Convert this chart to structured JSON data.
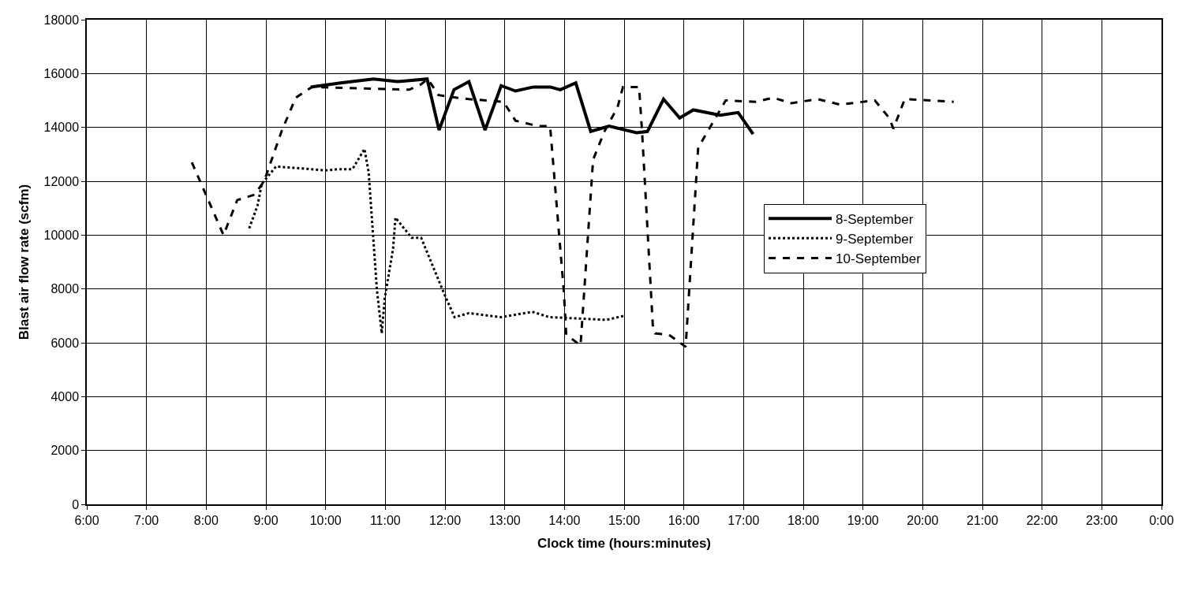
{
  "chart_data": {
    "type": "line",
    "xlabel": "Clock time (hours:minutes)",
    "ylabel": "Blast air flow rate (scfm)",
    "xlim": [
      6,
      24
    ],
    "xticks": [
      {
        "value": 6,
        "label": "6:00"
      },
      {
        "value": 7,
        "label": "7:00"
      },
      {
        "value": 8,
        "label": "8:00"
      },
      {
        "value": 9,
        "label": "9:00"
      },
      {
        "value": 10,
        "label": "10:00"
      },
      {
        "value": 11,
        "label": "11:00"
      },
      {
        "value": 12,
        "label": "12:00"
      },
      {
        "value": 13,
        "label": "13:00"
      },
      {
        "value": 14,
        "label": "14:00"
      },
      {
        "value": 15,
        "label": "15:00"
      },
      {
        "value": 16,
        "label": "16:00"
      },
      {
        "value": 17,
        "label": "17:00"
      },
      {
        "value": 18,
        "label": "18:00"
      },
      {
        "value": 19,
        "label": "19:00"
      },
      {
        "value": 20,
        "label": "20:00"
      },
      {
        "value": 21,
        "label": "21:00"
      },
      {
        "value": 22,
        "label": "22:00"
      },
      {
        "value": 23,
        "label": "23:00"
      },
      {
        "value": 24,
        "label": "0:00"
      }
    ],
    "ylim": [
      0,
      18000
    ],
    "yticks": [
      0,
      2000,
      4000,
      6000,
      8000,
      10000,
      12000,
      14000,
      16000,
      18000
    ],
    "grid": true,
    "legend": "right",
    "marker": "none",
    "series": [
      {
        "name": "8-September",
        "color": "#000000",
        "line_style": "solid",
        "x": [
          9.75,
          10.25,
          10.8,
          11.2,
          11.7,
          11.9,
          12.15,
          12.4,
          12.67,
          12.94,
          13.18,
          13.48,
          13.76,
          13.93,
          14.19,
          14.44,
          14.75,
          15.21,
          15.39,
          15.66,
          15.93,
          16.16,
          16.61,
          16.91,
          17.16
        ],
        "values": [
          15500,
          15650,
          15800,
          15700,
          15800,
          13900,
          15400,
          15700,
          13900,
          15550,
          15350,
          15500,
          15500,
          15400,
          15650,
          13850,
          14050,
          13800,
          13850,
          15050,
          14350,
          14650,
          14450,
          14550,
          13750
        ]
      },
      {
        "name": "9-September",
        "color": "#000000",
        "line_style": "dotted",
        "x": [
          8.72,
          8.86,
          8.93,
          9.17,
          9.45,
          9.99,
          10.22,
          10.45,
          10.65,
          10.72,
          10.86,
          10.94,
          10.99,
          11.13,
          11.17,
          11.44,
          11.6,
          11.99,
          12.16,
          12.4,
          12.94,
          13.46,
          13.75,
          14.26,
          14.7,
          15.0
        ],
        "values": [
          10250,
          11100,
          11900,
          12550,
          12500,
          12400,
          12450,
          12450,
          13200,
          12350,
          7950,
          6350,
          7650,
          9500,
          10650,
          9900,
          9900,
          7800,
          6950,
          7100,
          6950,
          7150,
          6950,
          6900,
          6850,
          7000
        ]
      },
      {
        "name": "10-September",
        "color": "#000000",
        "line_style": "dashed",
        "x": [
          7.76,
          8.29,
          8.52,
          8.81,
          8.97,
          9.27,
          9.5,
          9.77,
          11.4,
          11.6,
          11.71,
          11.89,
          12.2,
          12.4,
          12.98,
          13.18,
          13.55,
          13.76,
          13.99,
          14.03,
          14.27,
          14.48,
          14.67,
          14.89,
          14.98,
          15.25,
          15.3,
          15.48,
          15.52,
          15.75,
          16.03,
          16.24,
          16.61,
          16.7,
          17.2,
          17.5,
          17.8,
          18.24,
          18.61,
          19.2,
          19.44,
          19.51,
          19.7,
          20.52
        ],
        "values": [
          12700,
          10000,
          11300,
          11500,
          12000,
          13900,
          15100,
          15500,
          15400,
          15600,
          15800,
          15200,
          15100,
          15050,
          14950,
          14250,
          14050,
          14050,
          7900,
          6300,
          5900,
          12800,
          13850,
          14750,
          15500,
          15500,
          13850,
          6650,
          6350,
          6300,
          5850,
          13250,
          14650,
          15000,
          14950,
          15100,
          14900,
          15050,
          14850,
          15000,
          14350,
          13950,
          15050,
          14950
        ]
      }
    ]
  }
}
